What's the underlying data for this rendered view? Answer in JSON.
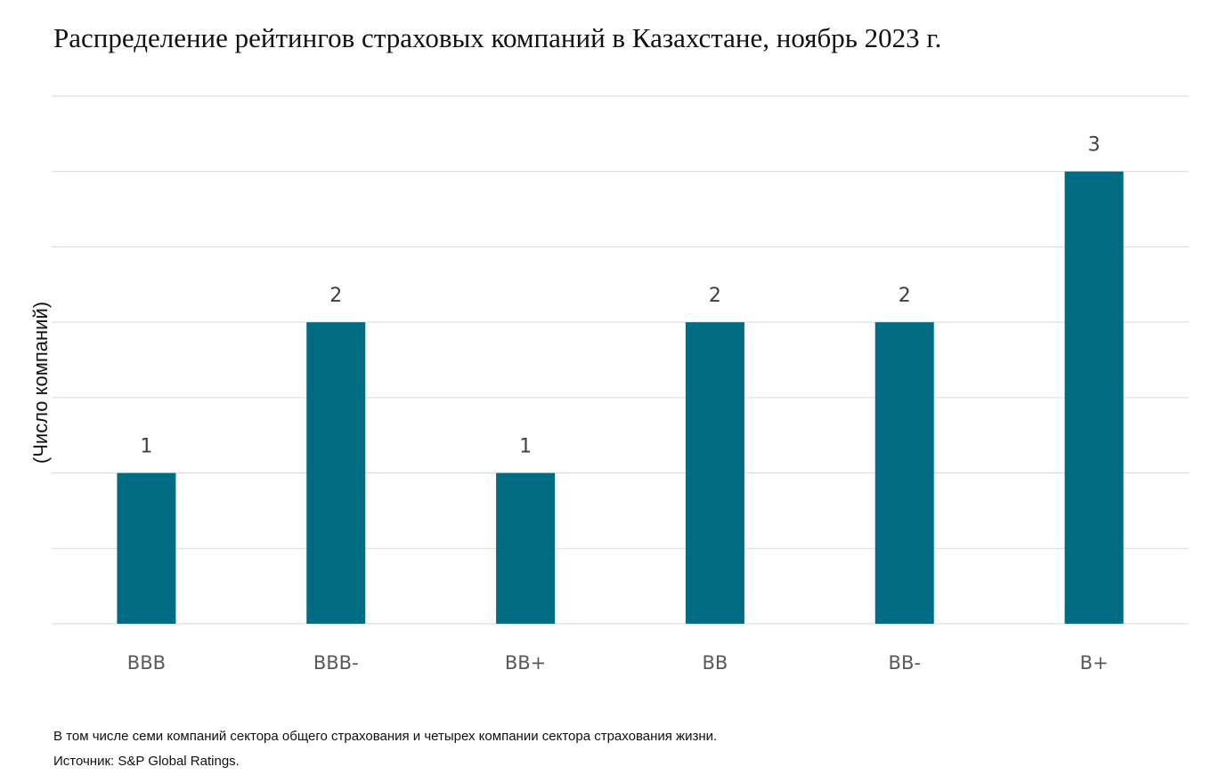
{
  "chart_data": {
    "type": "bar",
    "title": "Распределение рейтингов страховых компаний в Казахстане, ноябрь 2023 г.",
    "y_label": "(Число компаний)",
    "categories": [
      "BBB",
      "BBB-",
      "BB+",
      "BB",
      "BB-",
      "B+"
    ],
    "values": [
      1,
      2,
      1,
      2,
      2,
      3
    ],
    "color": "#006c84",
    "ylim": [
      0,
      3.5
    ],
    "yticks": [
      0,
      0.5,
      1,
      1.5,
      2,
      2.5,
      3,
      3.5
    ],
    "grid": true,
    "footnote": "В том числе семи компаний сектора общего страхования и четырех компании сектора страхования жизни.",
    "source": "Источник: S&P Global Ratings."
  }
}
